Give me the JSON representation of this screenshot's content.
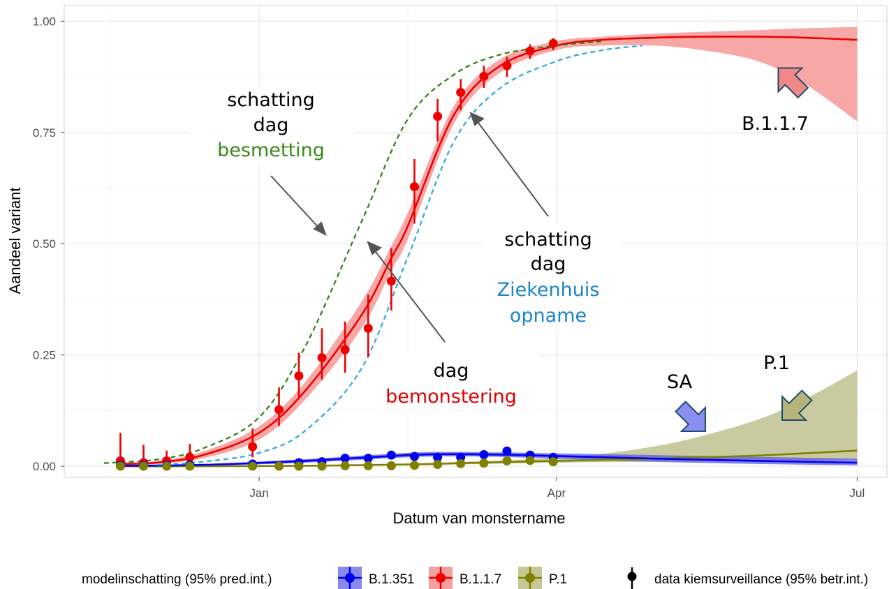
{
  "chart_data": {
    "type": "line",
    "xlabel": "Datum van monstername",
    "ylabel": "Aandeel variant",
    "x_ticks": [
      {
        "date": "2021-01-01",
        "label": "Jan"
      },
      {
        "date": "2021-04-01",
        "label": "Apr"
      },
      {
        "date": "2021-07-01",
        "label": "Jul"
      }
    ],
    "xlim": [
      "2020-11-03",
      "2021-07-10"
    ],
    "y_ticks": [
      "0.00",
      "0.25",
      "0.50",
      "0.75",
      "1.00"
    ],
    "ylim": [
      -0.025,
      1.035
    ],
    "grid": true,
    "legend_position": "bottom",
    "colors": {
      "B.1.351": "#0000ee",
      "B.1.1.7": "#ee0000",
      "P.1": "#808000",
      "infection": "#2e7d16",
      "hospital": "#29a8e6",
      "data": "#000000"
    },
    "series": [
      {
        "name": "B.1.1.7",
        "observed": [
          {
            "x": "2020-11-20",
            "y": 0.012,
            "lo": 0.0,
            "hi": 0.075
          },
          {
            "x": "2020-11-27",
            "y": 0.008,
            "lo": 0.0,
            "hi": 0.048
          },
          {
            "x": "2020-12-04",
            "y": 0.012,
            "lo": 0.0,
            "hi": 0.035
          },
          {
            "x": "2020-12-11",
            "y": 0.02,
            "lo": 0.005,
            "hi": 0.05
          },
          {
            "x": "2020-12-30",
            "y": 0.044,
            "lo": 0.02,
            "hi": 0.085
          },
          {
            "x": "2021-01-07",
            "y": 0.127,
            "lo": 0.09,
            "hi": 0.177
          },
          {
            "x": "2021-01-13",
            "y": 0.203,
            "lo": 0.155,
            "hi": 0.255
          },
          {
            "x": "2021-01-20",
            "y": 0.244,
            "lo": 0.195,
            "hi": 0.31
          },
          {
            "x": "2021-01-27",
            "y": 0.262,
            "lo": 0.21,
            "hi": 0.325
          },
          {
            "x": "2021-02-03",
            "y": 0.31,
            "lo": 0.245,
            "hi": 0.385
          },
          {
            "x": "2021-02-10",
            "y": 0.416,
            "lo": 0.35,
            "hi": 0.49
          },
          {
            "x": "2021-02-17",
            "y": 0.628,
            "lo": 0.545,
            "hi": 0.69
          },
          {
            "x": "2021-02-24",
            "y": 0.786,
            "lo": 0.73,
            "hi": 0.825
          },
          {
            "x": "2021-03-03",
            "y": 0.84,
            "lo": 0.8,
            "hi": 0.87
          },
          {
            "x": "2021-03-10",
            "y": 0.876,
            "lo": 0.85,
            "hi": 0.9
          },
          {
            "x": "2021-03-17",
            "y": 0.9,
            "lo": 0.875,
            "hi": 0.92
          },
          {
            "x": "2021-03-24",
            "y": 0.933,
            "lo": 0.915,
            "hi": 0.948
          },
          {
            "x": "2021-03-31",
            "y": 0.95,
            "lo": 0.935,
            "hi": 0.962
          }
        ],
        "model": {
          "x": [
            "2020-11-20",
            "2020-12-01",
            "2020-12-15",
            "2021-01-01",
            "2021-01-15",
            "2021-02-01",
            "2021-02-10",
            "2021-02-15",
            "2021-03-01",
            "2021-03-15",
            "2021-04-01",
            "2021-04-15",
            "2021-05-01",
            "2021-05-15",
            "2021-06-01",
            "2021-06-15",
            "2021-07-01"
          ],
          "y": [
            0.005,
            0.008,
            0.025,
            0.075,
            0.17,
            0.34,
            0.468,
            0.54,
            0.79,
            0.9,
            0.945,
            0.958,
            0.963,
            0.965,
            0.965,
            0.963,
            0.958
          ],
          "lo": [
            0.003,
            0.005,
            0.018,
            0.06,
            0.15,
            0.31,
            0.44,
            0.51,
            0.77,
            0.885,
            0.935,
            0.945,
            0.945,
            0.935,
            0.91,
            0.86,
            0.775
          ],
          "hi": [
            0.008,
            0.012,
            0.033,
            0.09,
            0.19,
            0.37,
            0.495,
            0.57,
            0.81,
            0.915,
            0.955,
            0.965,
            0.972,
            0.976,
            0.98,
            0.984,
            0.987
          ]
        }
      },
      {
        "name": "B.1.351",
        "observed": [
          {
            "x": "2020-11-20",
            "y": 0.002,
            "lo": 0.0,
            "hi": 0.01
          },
          {
            "x": "2020-11-27",
            "y": 0.002,
            "lo": 0.0,
            "hi": 0.008
          },
          {
            "x": "2020-12-04",
            "y": 0.002,
            "lo": 0.0,
            "hi": 0.008
          },
          {
            "x": "2020-12-11",
            "y": 0.003,
            "lo": 0.0,
            "hi": 0.01
          },
          {
            "x": "2020-12-30",
            "y": 0.005,
            "lo": 0.0,
            "hi": 0.015
          },
          {
            "x": "2021-01-13",
            "y": 0.008,
            "lo": 0.002,
            "hi": 0.016
          },
          {
            "x": "2021-01-20",
            "y": 0.01,
            "lo": 0.004,
            "hi": 0.018
          },
          {
            "x": "2021-01-27",
            "y": 0.018,
            "lo": 0.01,
            "hi": 0.026
          },
          {
            "x": "2021-02-03",
            "y": 0.018,
            "lo": 0.01,
            "hi": 0.026
          },
          {
            "x": "2021-02-10",
            "y": 0.025,
            "lo": 0.017,
            "hi": 0.033
          },
          {
            "x": "2021-02-17",
            "y": 0.022,
            "lo": 0.015,
            "hi": 0.03
          },
          {
            "x": "2021-02-24",
            "y": 0.02,
            "lo": 0.013,
            "hi": 0.027
          },
          {
            "x": "2021-03-03",
            "y": 0.02,
            "lo": 0.013,
            "hi": 0.027
          },
          {
            "x": "2021-03-10",
            "y": 0.026,
            "lo": 0.018,
            "hi": 0.034
          },
          {
            "x": "2021-03-17",
            "y": 0.034,
            "lo": 0.025,
            "hi": 0.043
          },
          {
            "x": "2021-03-24",
            "y": 0.025,
            "lo": 0.017,
            "hi": 0.033
          },
          {
            "x": "2021-03-31",
            "y": 0.02,
            "lo": 0.013,
            "hi": 0.028
          }
        ],
        "model": {
          "x": [
            "2020-11-20",
            "2020-12-15",
            "2021-01-15",
            "2021-02-15",
            "2021-03-01",
            "2021-03-15",
            "2021-04-01",
            "2021-05-01",
            "2021-06-01",
            "2021-07-01"
          ],
          "y": [
            0.001,
            0.003,
            0.012,
            0.025,
            0.027,
            0.026,
            0.023,
            0.017,
            0.012,
            0.008
          ],
          "lo": [
            0.0,
            0.001,
            0.008,
            0.02,
            0.022,
            0.021,
            0.017,
            0.01,
            0.005,
            0.002
          ],
          "hi": [
            0.002,
            0.005,
            0.016,
            0.03,
            0.032,
            0.031,
            0.029,
            0.025,
            0.021,
            0.017
          ]
        }
      },
      {
        "name": "P.1",
        "observed": [
          {
            "x": "2020-11-20",
            "y": 0.0,
            "lo": 0.0,
            "hi": 0.005
          },
          {
            "x": "2020-11-27",
            "y": 0.0,
            "lo": 0.0,
            "hi": 0.005
          },
          {
            "x": "2020-12-04",
            "y": 0.0,
            "lo": 0.0,
            "hi": 0.005
          },
          {
            "x": "2020-12-11",
            "y": 0.0,
            "lo": 0.0,
            "hi": 0.005
          },
          {
            "x": "2020-12-30",
            "y": 0.0,
            "lo": 0.0,
            "hi": 0.005
          },
          {
            "x": "2021-01-07",
            "y": 0.0,
            "lo": 0.0,
            "hi": 0.005
          },
          {
            "x": "2021-01-13",
            "y": 0.0,
            "lo": 0.0,
            "hi": 0.005
          },
          {
            "x": "2021-01-20",
            "y": 0.0,
            "lo": 0.0,
            "hi": 0.005
          },
          {
            "x": "2021-01-27",
            "y": 0.001,
            "lo": 0.0,
            "hi": 0.006
          },
          {
            "x": "2021-02-03",
            "y": 0.001,
            "lo": 0.0,
            "hi": 0.006
          },
          {
            "x": "2021-02-10",
            "y": 0.001,
            "lo": 0.0,
            "hi": 0.006
          },
          {
            "x": "2021-02-17",
            "y": 0.002,
            "lo": 0.0,
            "hi": 0.007
          },
          {
            "x": "2021-02-24",
            "y": 0.004,
            "lo": 0.0,
            "hi": 0.009
          },
          {
            "x": "2021-03-03",
            "y": 0.006,
            "lo": 0.002,
            "hi": 0.011
          },
          {
            "x": "2021-03-10",
            "y": 0.007,
            "lo": 0.003,
            "hi": 0.012
          },
          {
            "x": "2021-03-17",
            "y": 0.012,
            "lo": 0.007,
            "hi": 0.018
          },
          {
            "x": "2021-03-24",
            "y": 0.013,
            "lo": 0.008,
            "hi": 0.019
          },
          {
            "x": "2021-03-31",
            "y": 0.01,
            "lo": 0.005,
            "hi": 0.016
          }
        ],
        "model": {
          "x": [
            "2020-11-20",
            "2020-12-15",
            "2021-01-15",
            "2021-02-15",
            "2021-03-15",
            "2021-04-01",
            "2021-04-15",
            "2021-05-01",
            "2021-05-15",
            "2021-06-01",
            "2021-06-15",
            "2021-07-01"
          ],
          "y": [
            0.0,
            0.0,
            0.001,
            0.004,
            0.009,
            0.012,
            0.014,
            0.017,
            0.02,
            0.024,
            0.029,
            0.035
          ],
          "lo": [
            0.0,
            0.0,
            0.0,
            0.002,
            0.006,
            0.008,
            0.009,
            0.01,
            0.011,
            0.012,
            0.013,
            0.015
          ],
          "hi": [
            0.0,
            0.001,
            0.002,
            0.006,
            0.013,
            0.019,
            0.028,
            0.045,
            0.068,
            0.105,
            0.15,
            0.215
          ]
        }
      }
    ],
    "shifted_curves": [
      {
        "key": "infection",
        "x": [
          "2020-11-15",
          "2020-12-01",
          "2020-12-15",
          "2021-01-01",
          "2021-01-15",
          "2021-02-01",
          "2021-02-15",
          "2021-03-01",
          "2021-03-15",
          "2021-04-01",
          "2021-04-15"
        ],
        "y": [
          0.007,
          0.015,
          0.04,
          0.11,
          0.27,
          0.55,
          0.78,
          0.88,
          0.925,
          0.945,
          0.955
        ]
      },
      {
        "key": "hospital",
        "x": [
          "2020-12-01",
          "2020-12-15",
          "2021-01-01",
          "2021-01-15",
          "2021-02-01",
          "2021-02-15",
          "2021-03-01",
          "2021-03-15",
          "2021-04-01",
          "2021-04-15",
          "2021-04-27"
        ],
        "y": [
          0.003,
          0.01,
          0.03,
          0.08,
          0.22,
          0.47,
          0.73,
          0.85,
          0.91,
          0.935,
          0.945
        ]
      }
    ]
  },
  "annotations": {
    "infection": {
      "line1": "schatting",
      "line2": "dag",
      "line3": "besmetting"
    },
    "hospital": {
      "line1": "schatting",
      "line2": "dag",
      "line3": "Ziekenhuis",
      "line4": "opname"
    },
    "sampling": {
      "line1": "dag",
      "line2": "bemonstering"
    },
    "b117_label": "B.1.1.7",
    "sa_label": "SA",
    "p1_label": "P.1"
  },
  "legend": {
    "model_title": "modelinschatting (95% pred.int.)",
    "items": [
      "B.1.351",
      "B.1.1.7",
      "P.1"
    ],
    "data_label": "data kiemsurveillance (95% betr.int.)"
  }
}
